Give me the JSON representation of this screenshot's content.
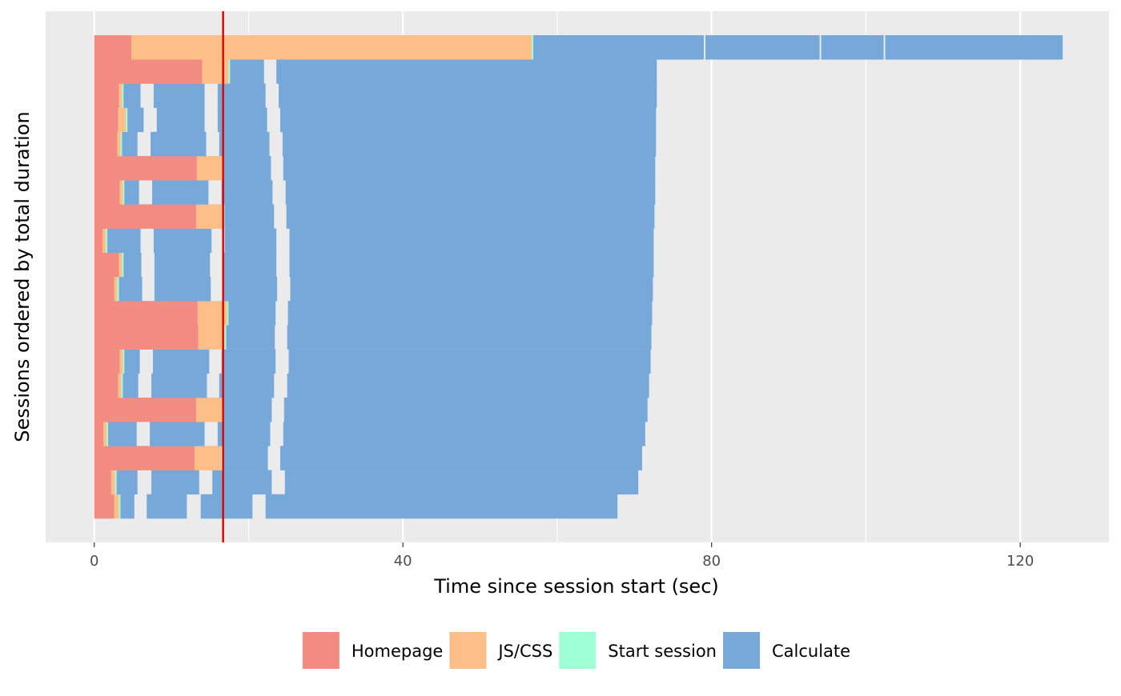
{
  "chart_data": {
    "type": "bar",
    "orientation": "horizontal-stacked-timeline",
    "xlabel": "Time since session start (sec)",
    "ylabel": "Sessions ordered by total duration",
    "xlim": [
      -6.3,
      131.5
    ],
    "xticks": [
      0,
      40,
      80,
      120
    ],
    "xtick_labels": [
      "0",
      "40",
      "80",
      "120"
    ],
    "grid": true,
    "legend_position": "bottom",
    "reference_line": {
      "x": 16.7,
      "color": "#e00000"
    },
    "categories": [
      "Homepage",
      "JS/CSS",
      "Start session",
      "Calculate"
    ],
    "colors": {
      "Homepage": "#f28b82",
      "JS/CSS": "#fdbf87",
      "Start session": "#9effd5",
      "Calculate": "#76a9da",
      "panel": "#ebebeb",
      "grid": "#ffffff"
    },
    "sessions": [
      {
        "session": 1,
        "events": [
          {
            "type": "Homepage",
            "start": 0.0,
            "end": 2.6
          },
          {
            "type": "JS/CSS",
            "start": 2.6,
            "end": 3.2
          },
          {
            "type": "Start session",
            "start": 3.2,
            "end": 3.4
          },
          {
            "type": "Calculate",
            "start": 3.4,
            "end": 5.2
          },
          {
            "type": "Calculate",
            "start": 6.8,
            "end": 12.0
          },
          {
            "type": "Calculate",
            "start": 13.8,
            "end": 20.5
          },
          {
            "type": "Calculate",
            "start": 22.2,
            "end": 67.8
          }
        ]
      },
      {
        "session": 2,
        "events": [
          {
            "type": "Homepage",
            "start": 0.0,
            "end": 2.2
          },
          {
            "type": "JS/CSS",
            "start": 2.2,
            "end": 2.7
          },
          {
            "type": "Start session",
            "start": 2.7,
            "end": 2.9
          },
          {
            "type": "Calculate",
            "start": 2.9,
            "end": 5.6
          },
          {
            "type": "Calculate",
            "start": 7.4,
            "end": 13.6
          },
          {
            "type": "Calculate",
            "start": 15.3,
            "end": 23.0
          },
          {
            "type": "Calculate",
            "start": 24.7,
            "end": 70.5
          }
        ]
      },
      {
        "session": 3,
        "events": [
          {
            "type": "Homepage",
            "start": 0.0,
            "end": 13.0
          },
          {
            "type": "JS/CSS",
            "start": 13.0,
            "end": 16.5
          },
          {
            "type": "Start session",
            "start": 16.5,
            "end": 16.7
          },
          {
            "type": "Calculate",
            "start": 16.7,
            "end": 22.5
          },
          {
            "type": "Calculate",
            "start": 24.1,
            "end": 71.0
          }
        ]
      },
      {
        "session": 4,
        "events": [
          {
            "type": "Homepage",
            "start": 0.0,
            "end": 1.2
          },
          {
            "type": "JS/CSS",
            "start": 1.2,
            "end": 1.6
          },
          {
            "type": "Start session",
            "start": 1.6,
            "end": 1.8
          },
          {
            "type": "Calculate",
            "start": 1.8,
            "end": 5.5
          },
          {
            "type": "Calculate",
            "start": 7.2,
            "end": 14.3
          },
          {
            "type": "Calculate",
            "start": 16.0,
            "end": 22.8
          },
          {
            "type": "Calculate",
            "start": 24.5,
            "end": 71.4
          }
        ]
      },
      {
        "session": 5,
        "events": [
          {
            "type": "Homepage",
            "start": 0.0,
            "end": 13.2
          },
          {
            "type": "JS/CSS",
            "start": 13.2,
            "end": 16.6
          },
          {
            "type": "Start session",
            "start": 16.6,
            "end": 16.8
          },
          {
            "type": "Calculate",
            "start": 16.8,
            "end": 23.0
          },
          {
            "type": "Calculate",
            "start": 24.6,
            "end": 71.7
          }
        ]
      },
      {
        "session": 6,
        "events": [
          {
            "type": "Homepage",
            "start": 0.0,
            "end": 3.1
          },
          {
            "type": "JS/CSS",
            "start": 3.1,
            "end": 3.5
          },
          {
            "type": "Start session",
            "start": 3.5,
            "end": 3.7
          },
          {
            "type": "Calculate",
            "start": 3.7,
            "end": 5.7
          },
          {
            "type": "Calculate",
            "start": 7.4,
            "end": 14.6
          },
          {
            "type": "Calculate",
            "start": 16.2,
            "end": 23.3
          },
          {
            "type": "Calculate",
            "start": 25.0,
            "end": 71.9
          }
        ]
      },
      {
        "session": 7,
        "events": [
          {
            "type": "Homepage",
            "start": 0.0,
            "end": 3.3
          },
          {
            "type": "JS/CSS",
            "start": 3.3,
            "end": 3.7
          },
          {
            "type": "Start session",
            "start": 3.7,
            "end": 3.9
          },
          {
            "type": "Calculate",
            "start": 3.9,
            "end": 5.9
          },
          {
            "type": "Calculate",
            "start": 7.6,
            "end": 14.9
          },
          {
            "type": "Calculate",
            "start": 16.5,
            "end": 23.5
          },
          {
            "type": "Calculate",
            "start": 25.2,
            "end": 72.1
          }
        ]
      },
      {
        "session": 8,
        "events": [
          {
            "type": "Homepage",
            "start": 0.0,
            "end": 13.5
          },
          {
            "type": "JS/CSS",
            "start": 13.5,
            "end": 16.9
          },
          {
            "type": "Start session",
            "start": 16.9,
            "end": 17.1
          },
          {
            "type": "Calculate",
            "start": 17.1,
            "end": 23.4
          },
          {
            "type": "Calculate",
            "start": 25.0,
            "end": 72.2
          }
        ]
      },
      {
        "session": 9,
        "events": [
          {
            "type": "Homepage",
            "start": 0.0,
            "end": 13.4
          },
          {
            "type": "JS/CSS",
            "start": 13.4,
            "end": 17.2
          },
          {
            "type": "Start session",
            "start": 17.2,
            "end": 17.4
          },
          {
            "type": "Calculate",
            "start": 17.4,
            "end": 23.5
          },
          {
            "type": "Calculate",
            "start": 25.1,
            "end": 72.3
          }
        ]
      },
      {
        "session": 10,
        "events": [
          {
            "type": "Homepage",
            "start": 0.0,
            "end": 2.6
          },
          {
            "type": "JS/CSS",
            "start": 2.6,
            "end": 3.0
          },
          {
            "type": "Start session",
            "start": 3.0,
            "end": 3.2
          },
          {
            "type": "Calculate",
            "start": 3.2,
            "end": 6.2
          },
          {
            "type": "Calculate",
            "start": 7.8,
            "end": 15.1
          },
          {
            "type": "Calculate",
            "start": 16.8,
            "end": 23.7
          },
          {
            "type": "Calculate",
            "start": 25.4,
            "end": 72.4
          }
        ]
      },
      {
        "session": 11,
        "events": [
          {
            "type": "Homepage",
            "start": 0.0,
            "end": 3.2
          },
          {
            "type": "JS/CSS",
            "start": 3.2,
            "end": 3.6
          },
          {
            "type": "Start session",
            "start": 3.6,
            "end": 3.8
          },
          {
            "type": "Calculate",
            "start": 3.8,
            "end": 6.1
          },
          {
            "type": "Calculate",
            "start": 7.8,
            "end": 15.0
          },
          {
            "type": "Calculate",
            "start": 16.7,
            "end": 23.6
          },
          {
            "type": "Calculate",
            "start": 25.3,
            "end": 72.5
          }
        ]
      },
      {
        "session": 12,
        "events": [
          {
            "type": "Homepage",
            "start": 0.0,
            "end": 1.1
          },
          {
            "type": "JS/CSS",
            "start": 1.1,
            "end": 1.5
          },
          {
            "type": "Start session",
            "start": 1.5,
            "end": 1.7
          },
          {
            "type": "Calculate",
            "start": 1.7,
            "end": 6.0
          },
          {
            "type": "Calculate",
            "start": 7.7,
            "end": 15.2
          },
          {
            "type": "Calculate",
            "start": 16.9,
            "end": 23.6
          },
          {
            "type": "Calculate",
            "start": 25.3,
            "end": 72.5
          }
        ]
      },
      {
        "session": 13,
        "events": [
          {
            "type": "Homepage",
            "start": 0.0,
            "end": 13.2
          },
          {
            "type": "JS/CSS",
            "start": 13.2,
            "end": 16.7
          },
          {
            "type": "Start session",
            "start": 16.7,
            "end": 16.9
          },
          {
            "type": "Calculate",
            "start": 16.9,
            "end": 23.3
          },
          {
            "type": "Calculate",
            "start": 24.9,
            "end": 72.6
          }
        ]
      },
      {
        "session": 14,
        "events": [
          {
            "type": "Homepage",
            "start": 0.0,
            "end": 3.3
          },
          {
            "type": "JS/CSS",
            "start": 3.3,
            "end": 3.7
          },
          {
            "type": "Start session",
            "start": 3.7,
            "end": 3.9
          },
          {
            "type": "Calculate",
            "start": 3.9,
            "end": 5.8
          },
          {
            "type": "Calculate",
            "start": 7.5,
            "end": 14.8
          },
          {
            "type": "Calculate",
            "start": 16.5,
            "end": 23.1
          },
          {
            "type": "Calculate",
            "start": 24.8,
            "end": 72.7
          }
        ]
      },
      {
        "session": 15,
        "events": [
          {
            "type": "Homepage",
            "start": 0.0,
            "end": 13.3
          },
          {
            "type": "JS/CSS",
            "start": 13.3,
            "end": 16.6
          },
          {
            "type": "Start session",
            "start": 16.6,
            "end": 16.8
          },
          {
            "type": "Calculate",
            "start": 16.8,
            "end": 22.9
          },
          {
            "type": "Calculate",
            "start": 24.5,
            "end": 72.7
          }
        ]
      },
      {
        "session": 16,
        "events": [
          {
            "type": "Homepage",
            "start": 0.0,
            "end": 3.0
          },
          {
            "type": "JS/CSS",
            "start": 3.0,
            "end": 3.4
          },
          {
            "type": "Start session",
            "start": 3.4,
            "end": 3.6
          },
          {
            "type": "Calculate",
            "start": 3.6,
            "end": 5.6
          },
          {
            "type": "Calculate",
            "start": 7.3,
            "end": 14.5
          },
          {
            "type": "Calculate",
            "start": 16.2,
            "end": 22.7
          },
          {
            "type": "Calculate",
            "start": 24.4,
            "end": 72.8
          }
        ]
      },
      {
        "session": 17,
        "events": [
          {
            "type": "Homepage",
            "start": 0.0,
            "end": 3.1
          },
          {
            "type": "JS/CSS",
            "start": 3.1,
            "end": 4.1
          },
          {
            "type": "Start session",
            "start": 4.1,
            "end": 4.3
          },
          {
            "type": "Calculate",
            "start": 4.3,
            "end": 6.4
          },
          {
            "type": "Calculate",
            "start": 8.1,
            "end": 14.3
          },
          {
            "type": "Calculate",
            "start": 16.0,
            "end": 22.4
          },
          {
            "type": "Calculate",
            "start": 24.1,
            "end": 72.8
          }
        ]
      },
      {
        "session": 18,
        "events": [
          {
            "type": "Homepage",
            "start": 0.0,
            "end": 3.2
          },
          {
            "type": "JS/CSS",
            "start": 3.2,
            "end": 3.6
          },
          {
            "type": "Start session",
            "start": 3.6,
            "end": 3.8
          },
          {
            "type": "Calculate",
            "start": 3.8,
            "end": 6.0
          },
          {
            "type": "Calculate",
            "start": 7.7,
            "end": 14.3
          },
          {
            "type": "Calculate",
            "start": 16.0,
            "end": 22.2
          },
          {
            "type": "Calculate",
            "start": 23.9,
            "end": 72.9
          }
        ]
      },
      {
        "session": 19,
        "events": [
          {
            "type": "Homepage",
            "start": 0.0,
            "end": 14.0
          },
          {
            "type": "JS/CSS",
            "start": 14.0,
            "end": 17.4
          },
          {
            "type": "Start session",
            "start": 17.4,
            "end": 17.6
          },
          {
            "type": "Calculate",
            "start": 17.6,
            "end": 22.0
          },
          {
            "type": "Calculate",
            "start": 23.6,
            "end": 72.9
          }
        ]
      },
      {
        "session": 20,
        "events": [
          {
            "type": "Homepage",
            "start": 0.0,
            "end": 4.8
          },
          {
            "type": "JS/CSS",
            "start": 4.8,
            "end": 56.7
          },
          {
            "type": "Start session",
            "start": 56.7,
            "end": 56.9
          },
          {
            "type": "Calculate",
            "start": 56.9,
            "end": 79.0
          },
          {
            "type": "Calculate",
            "start": 79.2,
            "end": 94.0
          },
          {
            "type": "Calculate",
            "start": 94.2,
            "end": 102.3
          },
          {
            "type": "Calculate",
            "start": 102.5,
            "end": 125.5
          }
        ]
      }
    ]
  }
}
